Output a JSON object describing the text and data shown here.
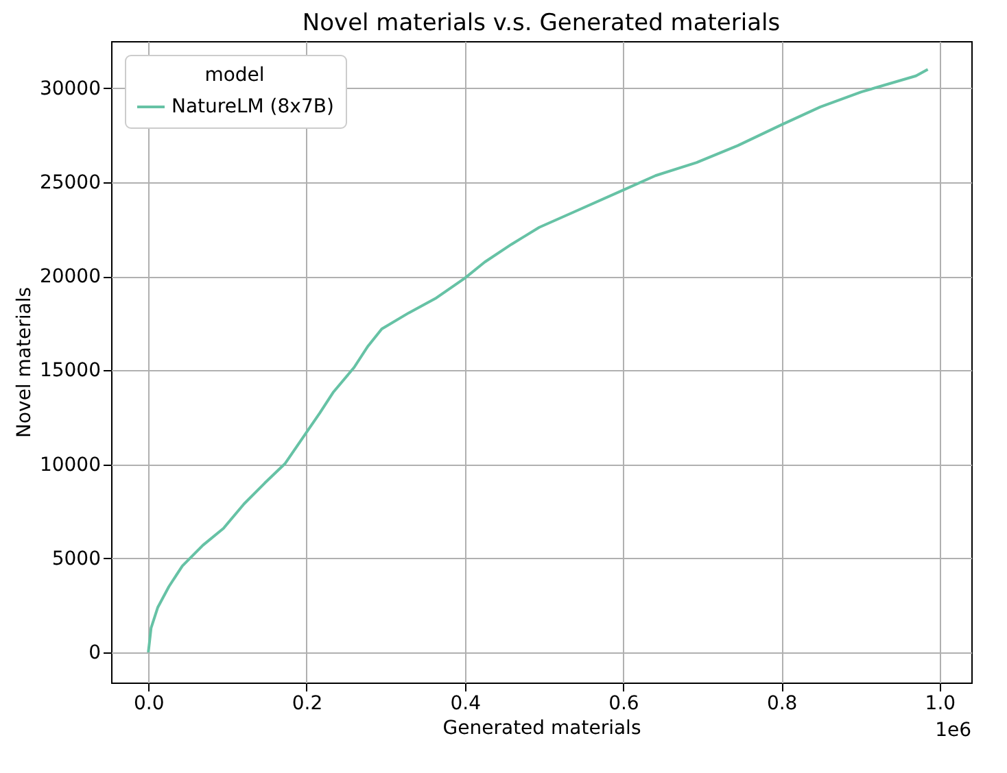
{
  "chart_data": {
    "type": "line",
    "title": "Novel materials v.s. Generated materials",
    "xlabel": "Generated materials",
    "ylabel": "Novel materials",
    "legend_title": "model",
    "x": [
      0,
      0.0035,
      0.012,
      0.026,
      0.043,
      0.069,
      0.095,
      0.121,
      0.147,
      0.173,
      0.199,
      0.217,
      0.234,
      0.26,
      0.277,
      0.295,
      0.329,
      0.364,
      0.4,
      0.425,
      0.459,
      0.494,
      0.537,
      0.601,
      0.641,
      0.693,
      0.745,
      0.8,
      0.849,
      0.901,
      0.97,
      0.985
    ],
    "series": [
      {
        "name": "NatureLM (8x7B)",
        "color": "#66c2a5",
        "values": [
          0,
          1300,
          2400,
          3500,
          4600,
          5700,
          6600,
          7900,
          9000,
          10050,
          11650,
          12750,
          13850,
          15150,
          16250,
          17200,
          18050,
          18850,
          19900,
          20750,
          21700,
          22600,
          23400,
          24600,
          25350,
          26050,
          26950,
          28050,
          29000,
          29800,
          30650,
          31000
        ]
      }
    ],
    "xlim": [
      -0.047,
      1.04
    ],
    "ylim": [
      -1600,
      32500
    ],
    "xticks": [
      {
        "value": 0,
        "label": "0.0"
      },
      0.2,
      0.4,
      0.6,
      0.8,
      {
        "value": 1,
        "label": "1.0"
      }
    ],
    "yticks": [
      0,
      5000,
      10000,
      15000,
      20000,
      25000,
      30000
    ],
    "annotations": [
      "1e6"
    ],
    "grid": true,
    "legend": "top left",
    "line_style": "solid"
  }
}
